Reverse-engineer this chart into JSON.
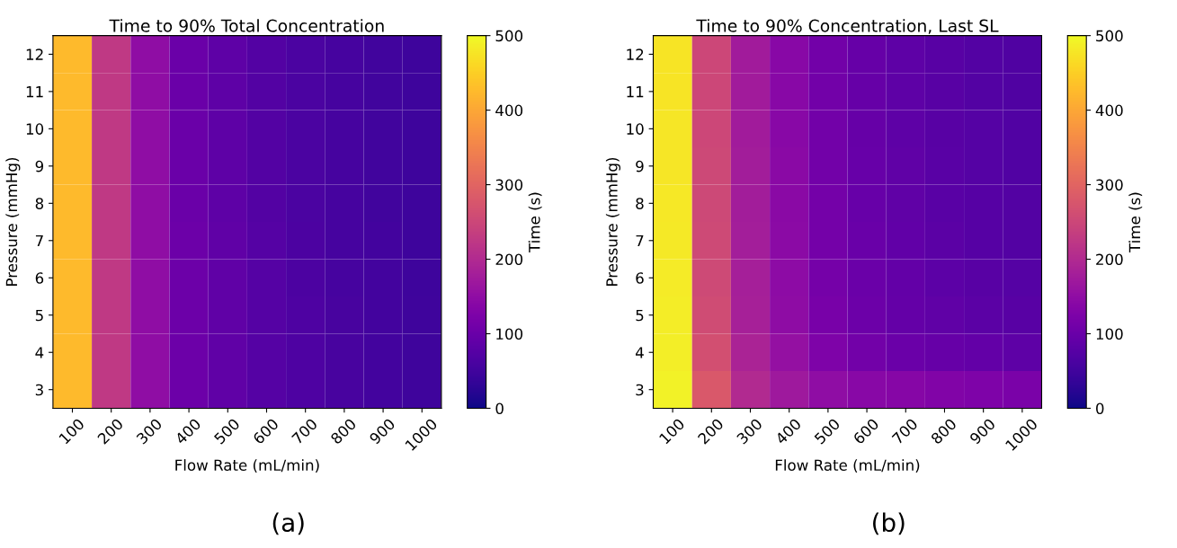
{
  "chart_data": [
    {
      "type": "heatmap",
      "title": "Time to 90% Total Concentration",
      "xlabel": "Flow Rate (mL/min)",
      "ylabel": "Pressure (mmHg)",
      "clabel": "Time (s)",
      "annotations": [
        "(a)"
      ],
      "categories": [
        "100",
        "200",
        "300",
        "400",
        "500",
        "600",
        "700",
        "800",
        "900",
        "1000"
      ],
      "y_categories": [
        "12",
        "11",
        "10",
        "9",
        "8",
        "7",
        "6",
        "5",
        "4",
        "3"
      ],
      "cells": [
        [
          425,
          225,
          150,
          100,
          85,
          72,
          62,
          55,
          50,
          45
        ],
        [
          425,
          225,
          150,
          100,
          85,
          72,
          62,
          55,
          50,
          45
        ],
        [
          425,
          225,
          150,
          100,
          85,
          72,
          62,
          55,
          50,
          45
        ],
        [
          425,
          225,
          150,
          100,
          85,
          72,
          62,
          55,
          50,
          45
        ],
        [
          425,
          225,
          150,
          100,
          85,
          72,
          62,
          55,
          50,
          45
        ],
        [
          425,
          225,
          150,
          102,
          86,
          73,
          63,
          56,
          51,
          46
        ],
        [
          425,
          225,
          150,
          102,
          86,
          73,
          63,
          56,
          51,
          46
        ],
        [
          425,
          225,
          150,
          102,
          86,
          74,
          65,
          58,
          52,
          47
        ],
        [
          425,
          225,
          150,
          102,
          86,
          74,
          65,
          58,
          52,
          47
        ],
        [
          425,
          225,
          150,
          102,
          86,
          74,
          65,
          58,
          52,
          47
        ]
      ],
      "clim": [
        0,
        500
      ],
      "cticks": [
        0,
        100,
        200,
        300,
        400,
        500
      ]
    },
    {
      "type": "heatmap",
      "title": "Time to 90% Concentration, Last SL",
      "xlabel": "Flow Rate (mL/min)",
      "ylabel": "Pressure (mmHg)",
      "clabel": "Time (s)",
      "annotations": [
        "(b)"
      ],
      "categories": [
        "100",
        "200",
        "300",
        "400",
        "500",
        "600",
        "700",
        "800",
        "900",
        "1000"
      ],
      "y_categories": [
        "12",
        "11",
        "10",
        "9",
        "8",
        "7",
        "6",
        "5",
        "4",
        "3"
      ],
      "cells": [
        [
          475,
          250,
          175,
          140,
          110,
          95,
          85,
          78,
          72,
          68
        ],
        [
          475,
          250,
          175,
          140,
          110,
          95,
          85,
          78,
          72,
          68
        ],
        [
          477,
          250,
          175,
          140,
          110,
          95,
          85,
          78,
          73,
          69
        ],
        [
          478,
          252,
          176,
          141,
          111,
          96,
          86,
          79,
          74,
          70
        ],
        [
          480,
          252,
          177,
          142,
          112,
          97,
          87,
          80,
          75,
          71
        ],
        [
          482,
          254,
          178,
          143,
          113,
          98,
          88,
          81,
          76,
          72
        ],
        [
          484,
          255,
          180,
          145,
          115,
          100,
          90,
          83,
          78,
          74
        ],
        [
          486,
          258,
          182,
          147,
          118,
          103,
          93,
          86,
          81,
          77
        ],
        [
          488,
          265,
          188,
          155,
          125,
          110,
          100,
          95,
          90,
          85
        ],
        [
          492,
          280,
          200,
          170,
          150,
          140,
          135,
          130,
          125,
          120
        ]
      ],
      "clim": [
        0,
        500
      ],
      "cticks": [
        0,
        100,
        200,
        300,
        400,
        500
      ]
    }
  ]
}
